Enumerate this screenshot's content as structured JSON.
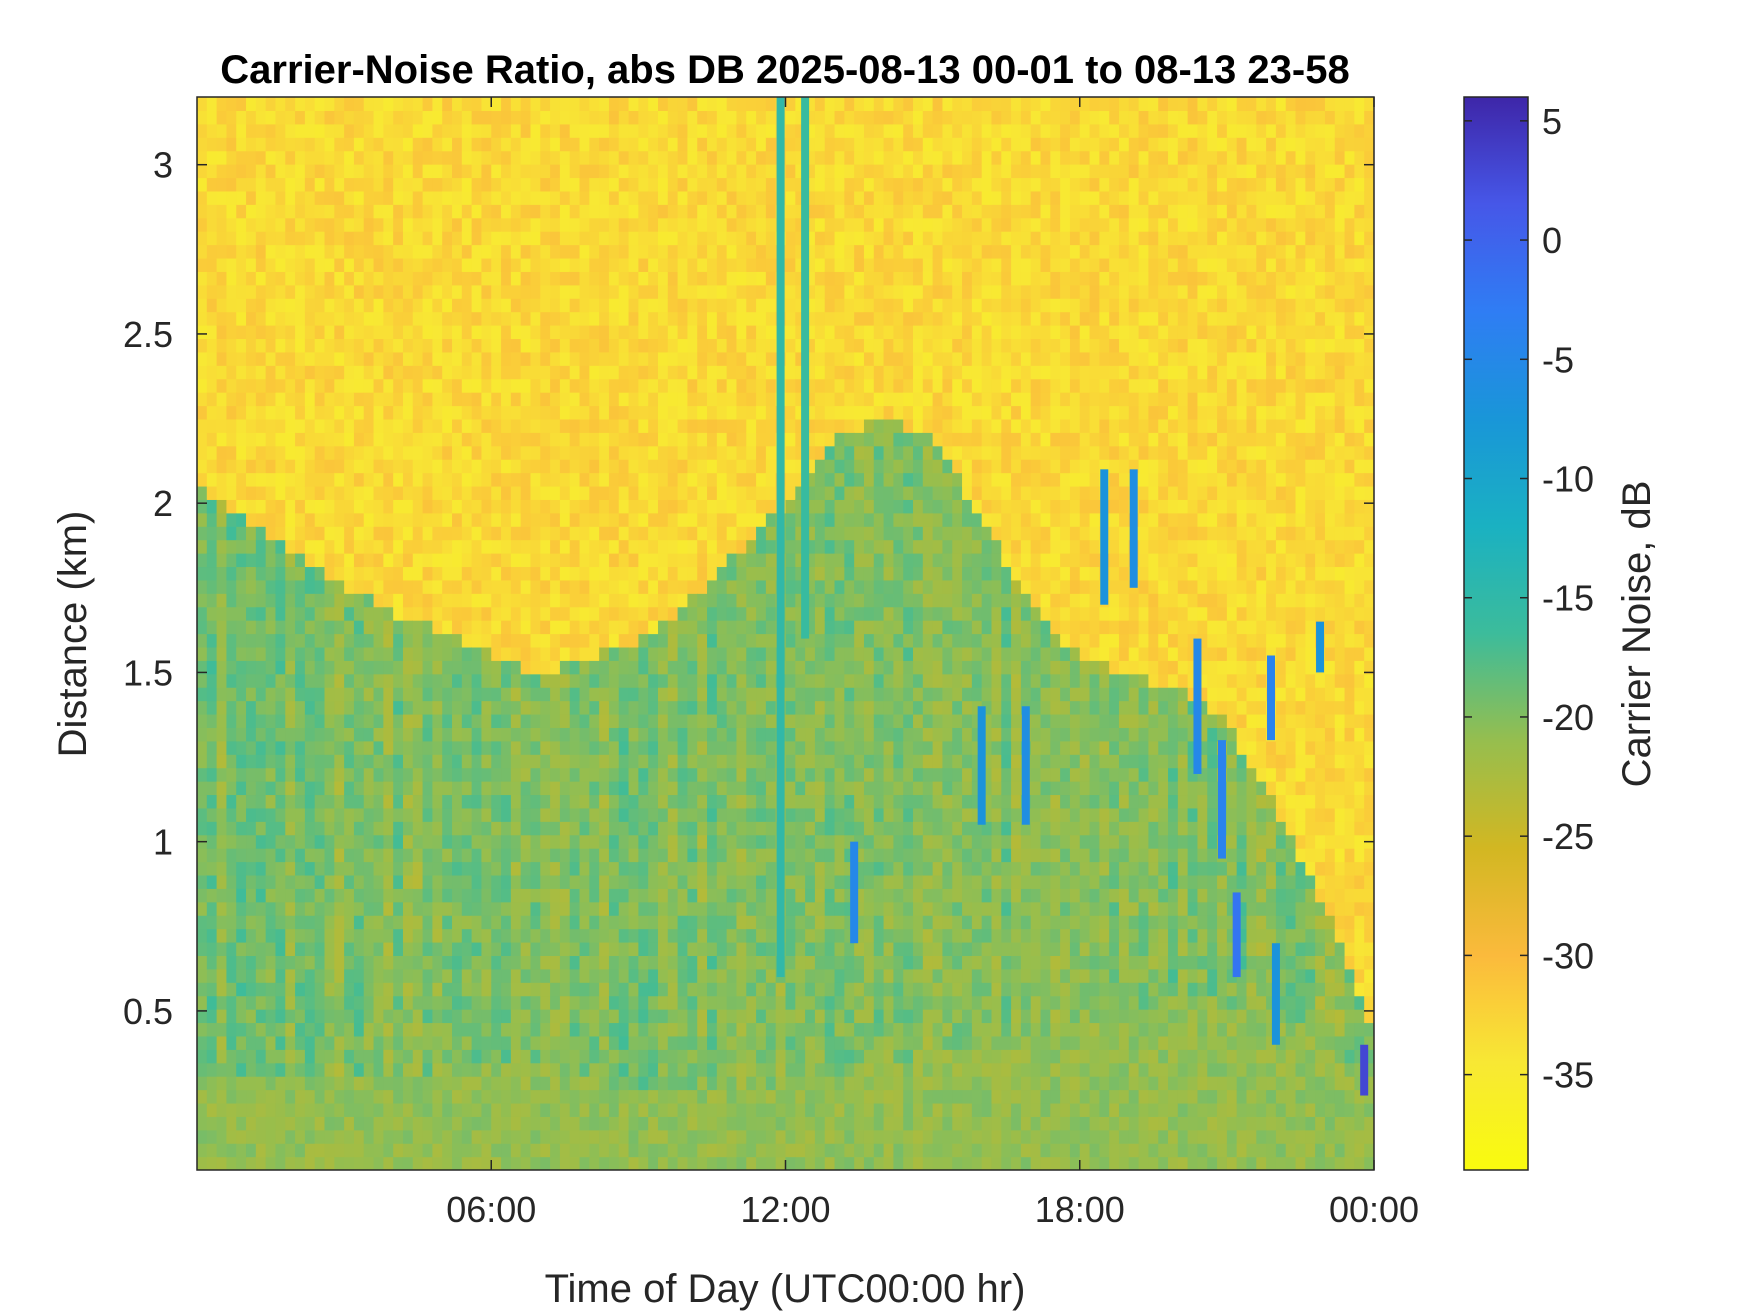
{
  "chart_data": {
    "type": "heatmap",
    "title": "Carrier-Noise Ratio, abs DB 2025-08-13 00-01 to 08-13 23-58",
    "xlabel": "Time of Day (UTC00:00 hr)",
    "ylabel": "Distance (km)",
    "x_unit": "hour",
    "xlim": [
      0,
      24
    ],
    "x_ticks": [
      6,
      12,
      18,
      24
    ],
    "x_tick_labels": [
      "06:00",
      "12:00",
      "18:00",
      "00:00"
    ],
    "ylim": [
      0.03,
      3.2
    ],
    "y_ticks": [
      0.5,
      1,
      1.5,
      2,
      2.5,
      3
    ],
    "y_tick_labels": [
      "0.5",
      "1",
      "1.5",
      "2",
      "2.5",
      "3"
    ],
    "colorbar": {
      "label": "Carrier Noise, dB",
      "range": [
        -39,
        6
      ],
      "ticks": [
        5,
        0,
        -5,
        -10,
        -15,
        -20,
        -25,
        -30,
        -35
      ],
      "tick_labels": [
        "5",
        "0",
        "-5",
        "-10",
        "-15",
        "-20",
        "-25",
        "-30",
        "-35"
      ],
      "colormap": "parula-reversed"
    },
    "layers": {
      "background_level": -33,
      "boundary_layer_top_km": [
        [
          0,
          2.05
        ],
        [
          1,
          1.95
        ],
        [
          2,
          1.85
        ],
        [
          3,
          1.75
        ],
        [
          4,
          1.68
        ],
        [
          5,
          1.62
        ],
        [
          6,
          1.55
        ],
        [
          7,
          1.5
        ],
        [
          8,
          1.55
        ],
        [
          9,
          1.6
        ],
        [
          10,
          1.7
        ],
        [
          11,
          1.85
        ],
        [
          12,
          2.0
        ],
        [
          13,
          2.2
        ],
        [
          14,
          2.25
        ],
        [
          15,
          2.2
        ],
        [
          16,
          1.95
        ],
        [
          17,
          1.7
        ],
        [
          18,
          1.55
        ],
        [
          19,
          1.5
        ],
        [
          20,
          1.45
        ],
        [
          21,
          1.35
        ],
        [
          22,
          1.1
        ],
        [
          23,
          0.8
        ],
        [
          24,
          0.45
        ]
      ],
      "surface_layer_top_km": [
        [
          0,
          0.3
        ],
        [
          4,
          0.3
        ],
        [
          6,
          0.35
        ],
        [
          8,
          0.3
        ],
        [
          10,
          0.25
        ],
        [
          12,
          0.28
        ],
        [
          14,
          0.35
        ],
        [
          16,
          0.4
        ],
        [
          18,
          0.45
        ],
        [
          20,
          0.55
        ],
        [
          22,
          0.5
        ],
        [
          24,
          0.3
        ]
      ],
      "inner_level": -20,
      "surface_level": -21,
      "plume_features": [
        {
          "x": 11.9,
          "y0": 0.6,
          "y1": 3.2,
          "level": -15
        },
        {
          "x": 12.4,
          "y0": 1.6,
          "y1": 3.2,
          "level": -16
        },
        {
          "x": 13.4,
          "y0": 0.7,
          "y1": 1.0,
          "level": -5
        },
        {
          "x": 16.0,
          "y0": 1.05,
          "y1": 1.4,
          "level": -7
        },
        {
          "x": 16.9,
          "y0": 1.05,
          "y1": 1.4,
          "level": -6
        },
        {
          "x": 18.5,
          "y0": 1.7,
          "y1": 2.1,
          "level": -7
        },
        {
          "x": 19.1,
          "y0": 1.75,
          "y1": 2.1,
          "level": -6
        },
        {
          "x": 20.4,
          "y0": 1.2,
          "y1": 1.6,
          "level": -5
        },
        {
          "x": 20.9,
          "y0": 0.95,
          "y1": 1.3,
          "level": -4
        },
        {
          "x": 21.2,
          "y0": 0.6,
          "y1": 0.85,
          "level": -2
        },
        {
          "x": 21.9,
          "y0": 1.3,
          "y1": 1.55,
          "level": -4
        },
        {
          "x": 22.0,
          "y0": 0.4,
          "y1": 0.7,
          "level": -7
        },
        {
          "x": 22.9,
          "y0": 1.5,
          "y1": 1.65,
          "level": -7
        },
        {
          "x": 23.8,
          "y0": 0.25,
          "y1": 0.4,
          "level": 3
        }
      ]
    }
  }
}
